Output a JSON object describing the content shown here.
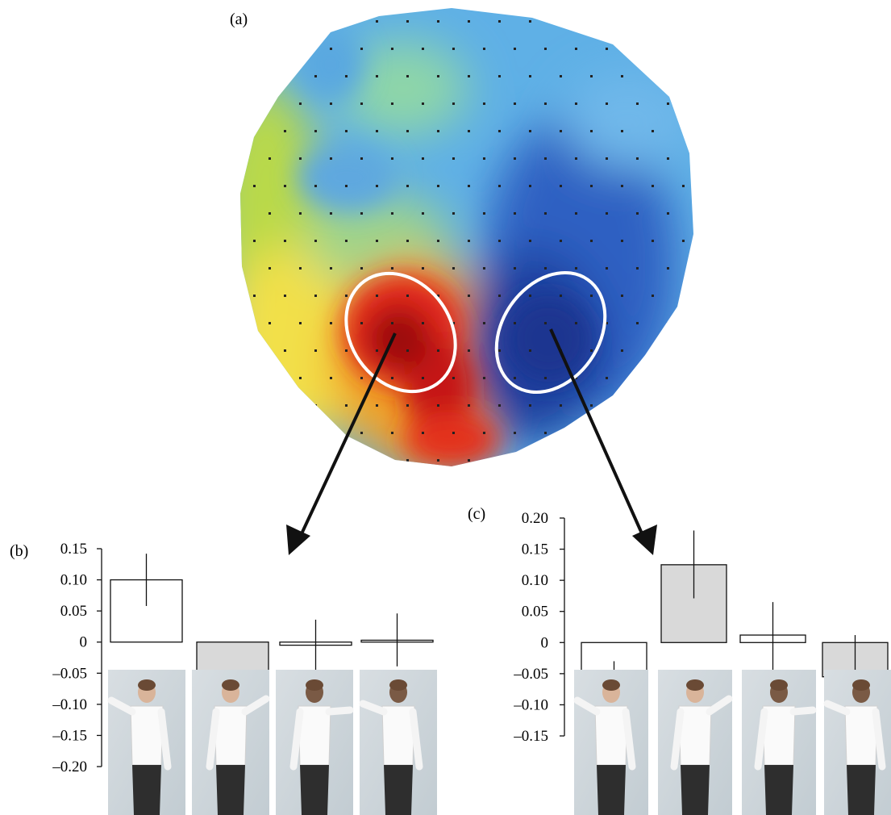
{
  "panels": {
    "a_label": "(a)",
    "b_label": "(b)",
    "c_label": "(c)"
  },
  "topomap": {
    "description_icon": "brain-topography-map",
    "colors": {
      "positive_peak": "#c0140f",
      "negative_peak": "#1e3f9a",
      "neutral": "#e9e24a"
    }
  },
  "chart_data": [
    {
      "type": "bar",
      "panel": "(b)",
      "categories": [
        "pose-1",
        "pose-2",
        "pose-3",
        "pose-4"
      ],
      "values": [
        0.1,
        -0.1,
        -0.005,
        0.003
      ],
      "error_bars": [
        [
          0.058,
          0.142
        ],
        [
          -0.14,
          -0.057
        ],
        [
          -0.045,
          0.036
        ],
        [
          -0.039,
          0.046
        ]
      ],
      "fills": [
        "#ffffff",
        "#d9d9d9",
        "#ffffff",
        "#ffffff"
      ],
      "ylim": [
        -0.2,
        0.15
      ],
      "yticks": [
        "0.15",
        "0.10",
        "0.05",
        "0",
        "–0.05",
        "–0.10",
        "–0.15",
        "–0.20"
      ],
      "ytick_values": [
        0.15,
        0.1,
        0.05,
        0,
        -0.05,
        -0.1,
        -0.15,
        -0.2
      ]
    },
    {
      "type": "bar",
      "panel": "(c)",
      "categories": [
        "pose-1",
        "pose-2",
        "pose-3",
        "pose-4"
      ],
      "values": [
        -0.085,
        0.125,
        0.012,
        -0.055
      ],
      "error_bars": [
        [
          -0.14,
          -0.03
        ],
        [
          0.071,
          0.18
        ],
        [
          -0.044,
          0.065
        ],
        [
          -0.098,
          0.012
        ]
      ],
      "fills": [
        "#ffffff",
        "#d9d9d9",
        "#ffffff",
        "#d9d9d9"
      ],
      "ylim": [
        -0.15,
        0.2
      ],
      "yticks": [
        "0.20",
        "0.15",
        "0.10",
        "0.05",
        "0",
        "–0.05",
        "–0.10",
        "–0.15"
      ],
      "ytick_values": [
        0.2,
        0.15,
        0.1,
        0.05,
        0,
        -0.05,
        -0.1,
        -0.15
      ]
    }
  ]
}
